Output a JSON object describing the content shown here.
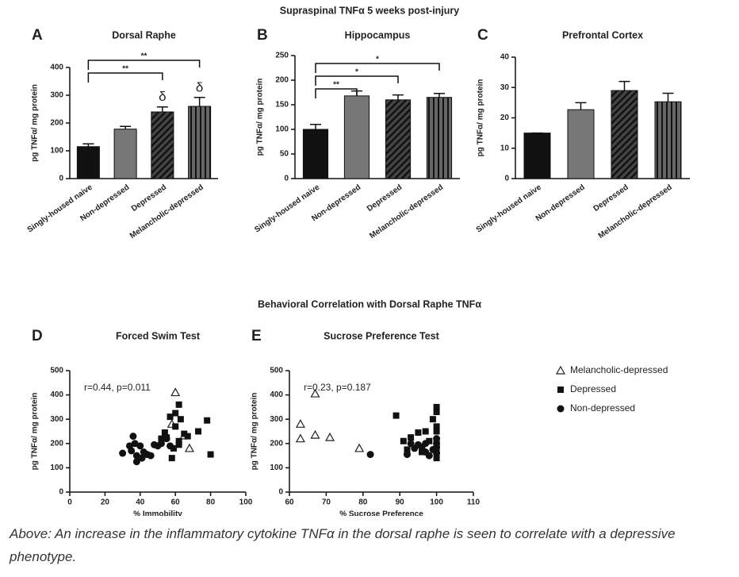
{
  "figure_title": "Supraspinal TNFα 5 weeks post-injury",
  "section_title": "Behavioral Correlation with Dorsal Raphe TNFα",
  "caption": "Above: An increase in the inflammatory cytokine TNFα in the dorsal raphe is seen to correlate with a depressive phenotype.",
  "chart_data": [
    {
      "type": "bar",
      "panel": "A",
      "title": "Dorsal Raphe",
      "y_label": "pg TNFα/ mg protein",
      "categories": [
        "Singly-housed naive",
        "Non-depressed",
        "Depressed",
        "Melancholic-depressed"
      ],
      "values": [
        115,
        178,
        240,
        260
      ],
      "errors": [
        10,
        10,
        18,
        32
      ],
      "bar_styles": [
        "black",
        "gray",
        "diagonal-hatch",
        "vertical-stripes"
      ],
      "value_annotations": [
        null,
        null,
        "δ",
        "δ"
      ],
      "comparisons": [
        {
          "label": "**",
          "between": [
            "Singly-housed naive",
            "Melancholic-depressed"
          ]
        },
        {
          "label": "**",
          "between": [
            "Singly-housed naive",
            "Depressed"
          ]
        }
      ],
      "ylim": [
        0,
        400
      ],
      "yticks": [
        0,
        100,
        200,
        300,
        400
      ]
    },
    {
      "type": "bar",
      "panel": "B",
      "title": "Hippocampus",
      "y_label": "pg TNFα/ mg protein",
      "categories": [
        "Singly-housed naive",
        "Non-depressed",
        "Depressed",
        "Melancholic-depressed"
      ],
      "values": [
        100,
        168,
        160,
        165
      ],
      "errors": [
        10,
        10,
        10,
        8
      ],
      "bar_styles": [
        "black",
        "gray",
        "diagonal-hatch",
        "vertical-stripes"
      ],
      "comparisons": [
        {
          "label": "*",
          "between": [
            "Singly-housed naive",
            "Melancholic-depressed"
          ]
        },
        {
          "label": "*",
          "between": [
            "Singly-housed naive",
            "Depressed"
          ]
        },
        {
          "label": "**",
          "between": [
            "Singly-housed naive",
            "Non-depressed"
          ]
        }
      ],
      "ylim": [
        0,
        250
      ],
      "yticks": [
        0,
        50,
        100,
        150,
        200,
        250
      ]
    },
    {
      "type": "bar",
      "panel": "C",
      "title": "Prefrontal Cortex",
      "y_label": "pg TNFα/ mg protein",
      "categories": [
        "Singly-housed naive",
        "Non-depressed",
        "Depressed",
        "Melancholic-depressed"
      ],
      "values": [
        15,
        22.7,
        29,
        25.3
      ],
      "errors": [
        0,
        2.3,
        3,
        2.8
      ],
      "bar_styles": [
        "black",
        "gray",
        "diagonal-hatch",
        "vertical-stripes"
      ],
      "ylim": [
        0,
        40
      ],
      "yticks": [
        0,
        10,
        20,
        30,
        40
      ]
    },
    {
      "type": "scatter",
      "panel": "D",
      "title": "Forced Swim Test",
      "y_label": "pg TNFα/ mg protein",
      "x_label": "% Immobility",
      "annotation": "r=0.44, p=0.011",
      "xlim": [
        0,
        100
      ],
      "xticks": [
        0,
        20,
        40,
        60,
        80,
        100
      ],
      "ylim": [
        0,
        500
      ],
      "yticks": [
        0,
        100,
        200,
        300,
        400,
        500
      ],
      "series": [
        {
          "name": "Melancholic-depressed",
          "marker": "open-triangle",
          "x": [
            60,
            58,
            65,
            68
          ],
          "values": [
            410,
            280,
            232,
            180
          ]
        },
        {
          "name": "Depressed",
          "marker": "square",
          "x": [
            62,
            60,
            63,
            57,
            60,
            55,
            62,
            65,
            67,
            73,
            78,
            80,
            59,
            58,
            54,
            52,
            62
          ],
          "values": [
            360,
            325,
            300,
            310,
            270,
            225,
            210,
            240,
            230,
            250,
            295,
            155,
            180,
            140,
            245,
            220,
            195
          ]
        },
        {
          "name": "Non-depressed",
          "marker": "circle",
          "x": [
            30,
            36,
            37,
            35,
            38,
            38,
            40,
            42,
            41,
            44,
            46,
            48,
            50,
            52,
            55,
            57,
            34
          ],
          "values": [
            160,
            230,
            200,
            170,
            150,
            125,
            190,
            165,
            140,
            155,
            150,
            195,
            190,
            200,
            220,
            190,
            190
          ]
        }
      ]
    },
    {
      "type": "scatter",
      "panel": "E",
      "title": "Sucrose Preference Test",
      "y_label": "pg TNFα/ mg protein",
      "x_label": "% Sucrose Preference",
      "annotation": "r=0.23, p=0.187",
      "legend": "right",
      "xlim": [
        60,
        110
      ],
      "xticks": [
        60,
        70,
        80,
        90,
        100,
        110
      ],
      "ylim": [
        0,
        500
      ],
      "yticks": [
        0,
        100,
        200,
        300,
        400,
        500
      ],
      "series": [
        {
          "name": "Melancholic-depressed",
          "marker": "open-triangle",
          "x": [
            63,
            63,
            67,
            67,
            71,
            79
          ],
          "values": [
            280,
            220,
            405,
            235,
            225,
            180
          ]
        },
        {
          "name": "Depressed",
          "marker": "square",
          "x": [
            89,
            91,
            93,
            95,
            97,
            99,
            100,
            100,
            100,
            100,
            100,
            100,
            100,
            98,
            92,
            96
          ],
          "values": [
            315,
            210,
            225,
            245,
            250,
            300,
            350,
            330,
            270,
            250,
            200,
            175,
            140,
            210,
            175,
            165
          ]
        },
        {
          "name": "Non-depressed",
          "marker": "circle",
          "x": [
            82,
            92,
            94,
            95,
            96,
            97,
            98,
            99,
            100,
            100,
            100,
            100,
            93,
            97
          ],
          "values": [
            155,
            155,
            180,
            195,
            185,
            165,
            150,
            175,
            220,
            200,
            185,
            160,
            200,
            200
          ]
        }
      ]
    }
  ]
}
